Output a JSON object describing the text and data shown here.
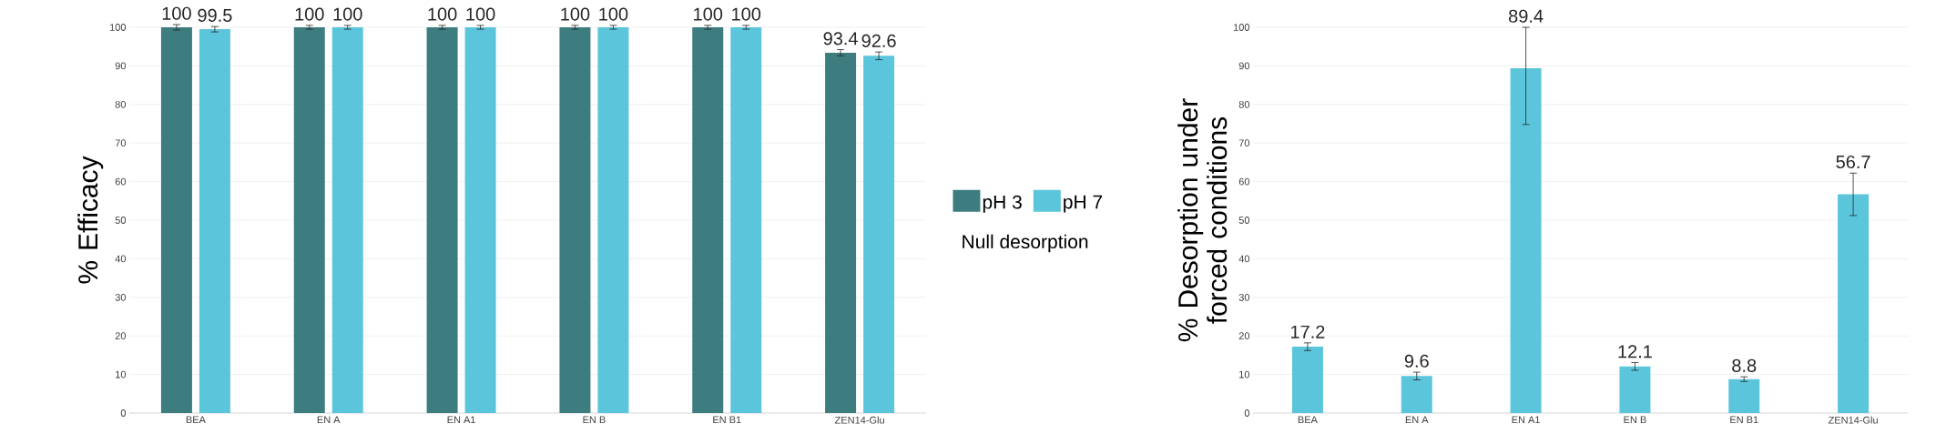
{
  "chart_data": [
    {
      "type": "bar",
      "ylabel": "% Efficacy",
      "categories": [
        "BEA",
        "EN A",
        "EN A1",
        "EN B",
        "EN B1",
        "ZEN14-Glu"
      ],
      "series": [
        {
          "name": "pH 3",
          "color": "#3d7d80",
          "values": [
            100,
            100,
            100,
            100,
            100,
            93.4
          ],
          "errors": [
            0.7,
            0.5,
            0.5,
            0.5,
            0.5,
            0.8
          ]
        },
        {
          "name": "pH 7",
          "color": "#5bc5dc",
          "values": [
            99.5,
            100,
            100,
            100,
            100,
            92.6
          ],
          "errors": [
            0.7,
            0.5,
            0.5,
            0.5,
            0.5,
            1
          ]
        }
      ],
      "ylim": [
        0,
        100
      ],
      "yticks": [
        0,
        10,
        20,
        30,
        40,
        50,
        60,
        70,
        80,
        90,
        100
      ],
      "grid": "y",
      "legend": "right",
      "data_labels": true,
      "annotations": [
        "Null desorption"
      ]
    },
    {
      "type": "bar",
      "ylabel": "% Desorption under forced conditions",
      "categories": [
        "BEA",
        "EN A",
        "EN A1",
        "EN B",
        "EN B1",
        "ZEN14-Glu"
      ],
      "series": [
        {
          "color": "#5bc5dc",
          "values": [
            17.2,
            9.6,
            89.4,
            12.1,
            8.8,
            56.7
          ],
          "errors": [
            1,
            1,
            [
              74.8,
              100
            ],
            1,
            0.6,
            [
              51.2,
              62.2
            ]
          ]
        }
      ],
      "ylim": [
        0,
        100
      ],
      "yticks": [
        0,
        10,
        20,
        30,
        40,
        50,
        60,
        70,
        80,
        90,
        100
      ],
      "grid": "y",
      "data_labels": true
    }
  ]
}
